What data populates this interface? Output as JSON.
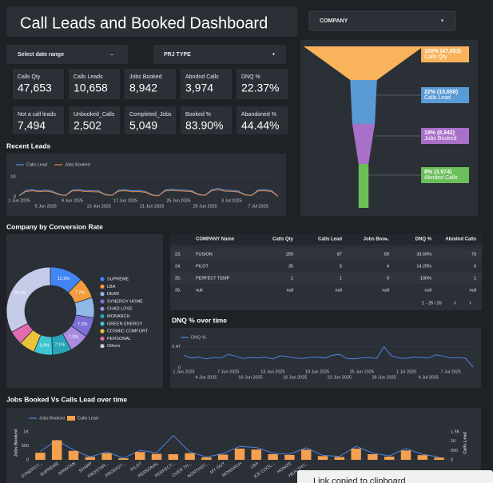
{
  "header": {
    "title": "Call Leads and Booked Dashboard",
    "company_filter": "COMPANY",
    "date_filter": "Select date range",
    "prj_filter": "PRJ TYPE"
  },
  "kpis": [
    {
      "label": "Calls Qty",
      "value": "47,653"
    },
    {
      "label": "Calls Leads",
      "value": "10,658"
    },
    {
      "label": "Jobs Booked",
      "value": "8,942"
    },
    {
      "label": "Abndnd Calls",
      "value": "3,974"
    },
    {
      "label": "DNQ %",
      "value": "22.37%"
    },
    {
      "label": "Not a call leads",
      "value": "7,494"
    },
    {
      "label": "Unbooked_Calls",
      "value": "2,502"
    },
    {
      "label": "Completed_Jobs",
      "value": "5,049"
    },
    {
      "label": "Booked %",
      "value": "83.90%"
    },
    {
      "label": "Abandoned %",
      "value": "44.44%"
    }
  ],
  "chart_data": [
    {
      "type": "funnel",
      "categories": [
        "Calls Qty",
        "Calls Lead",
        "Jobs Booked",
        "Abndnd Calls"
      ],
      "values": [
        47653,
        10658,
        8942,
        3974
      ],
      "value_labels": [
        "100% (47,653)",
        "22% (10,658)",
        "19% (8,942)",
        "8% (3,974)"
      ],
      "colors": [
        "#f9b35c",
        "#5b9bd5",
        "#a970c9",
        "#6bbf59"
      ]
    },
    {
      "type": "line",
      "title": "Recent Leads",
      "x": [
        "1 Jun 2025",
        null,
        null,
        null,
        "5 Jun 2025",
        null,
        null,
        null,
        "9 Jun 2025",
        null,
        null,
        null,
        "13 Jun 2025",
        null,
        null,
        null,
        "17 Jun 2025",
        null,
        null,
        null,
        "21 Jun 2025",
        null,
        null,
        null,
        "25 Jun 2025",
        null,
        null,
        null,
        "29 Jun 2025",
        null,
        null,
        null,
        "3 Jul 2025",
        null,
        null,
        null,
        "7 Jul 2025",
        null,
        null,
        null
      ],
      "series": [
        {
          "name": "Calls Lead",
          "color": "#5b8fd9",
          "values": [
            60,
            320,
            350,
            300,
            330,
            280,
            120,
            70,
            340,
            360,
            310,
            300,
            290,
            110,
            80,
            330,
            350,
            300,
            310,
            270,
            100,
            60,
            340,
            380,
            350,
            330,
            300,
            120,
            80,
            350,
            420,
            330,
            320,
            290,
            110,
            70,
            340,
            360,
            310,
            20
          ]
        },
        {
          "name": "Jobs Booked",
          "color": "#e08a4c",
          "values": [
            50,
            260,
            300,
            250,
            280,
            230,
            100,
            60,
            290,
            300,
            260,
            250,
            240,
            90,
            70,
            280,
            300,
            250,
            260,
            220,
            80,
            50,
            290,
            320,
            290,
            280,
            250,
            100,
            70,
            300,
            350,
            280,
            270,
            240,
            90,
            60,
            290,
            300,
            260,
            15
          ]
        }
      ],
      "ylim": [
        0,
        1200
      ],
      "yticks": [
        0,
        {
          "value": 1000,
          "label": "1K"
        }
      ],
      "legend": "top"
    },
    {
      "type": "pie",
      "donut": true,
      "title": "Company by Conversion Rate",
      "categories": [
        "SUPREME",
        "LBA",
        "DEAR",
        "SYNERGY HOME",
        "CHAD LOVE",
        "MONARCH",
        "GREEN ENERGY",
        "COSMIC COMFORT",
        "PERSONAL",
        "Others"
      ],
      "values": [
        12.3,
        7.7,
        7.5,
        7.3,
        7.3,
        7.1,
        6.9,
        5.8,
        5.2,
        32.9
      ],
      "value_labels": [
        "12.3%",
        "7.7%",
        null,
        "7.3%",
        "7.3%",
        "7.1%",
        "6.9%",
        null,
        null,
        "32.9%"
      ],
      "colors": [
        "#4285f4",
        "#f39c3d",
        "#8fb8e8",
        "#7d6fd6",
        "#a98be0",
        "#26a5b8",
        "#3ec6d4",
        "#e9c43b",
        "#e26ab0",
        "#c5cbe8"
      ],
      "legend": "right"
    },
    {
      "type": "line",
      "title": "DNQ % over time",
      "x": [
        "1 Jun 2025",
        null,
        null,
        "4 Jun 2025",
        null,
        null,
        "7 Jun 2025",
        null,
        null,
        "10 Jun 2025",
        null,
        null,
        "13 Jun 2025",
        null,
        null,
        "16 Jun 2025",
        null,
        null,
        "19 Jun 2025",
        null,
        null,
        "22 Jun 2025",
        null,
        null,
        "25 Jun 2025",
        null,
        null,
        "28 Jun 2025",
        null,
        null,
        "1 Jul 2025",
        null,
        null,
        "4 Jul 2025",
        null,
        null,
        "7 Jul 2025",
        null,
        null,
        null
      ],
      "series": [
        {
          "name": "DNQ %",
          "color": "#4f86e0",
          "values": [
            0.28,
            0.22,
            0.24,
            0.2,
            0.23,
            0.22,
            0.3,
            0.26,
            0.21,
            0.23,
            0.22,
            0.24,
            0.2,
            0.27,
            0.25,
            0.22,
            0.21,
            0.23,
            0.24,
            0.22,
            0.28,
            0.3,
            0.21,
            0.2,
            0.22,
            0.23,
            0.21,
            0.47,
            0.27,
            0.22,
            0.21,
            0.24,
            0.23,
            0.22,
            0.29,
            0.26,
            0.22,
            0.23,
            0.21,
            0.02
          ]
        }
      ],
      "ylim": [
        0,
        0.5
      ],
      "yticks": [
        0,
        0.47
      ],
      "legend": "top"
    },
    {
      "type": "combo",
      "title": "Jobs Booked Vs Calls Lead over time",
      "categories": [
        "SYNERGY...",
        "SUPREME",
        "SPANTAN",
        "SHARP",
        "PROSTAR...",
        "PRODIGY...",
        "PILOT",
        "PERSONAL",
        "PERFECT...",
        "OVER TH...",
        "NORTHST...",
        "MY GUY",
        "MONARCH",
        "LBA",
        "ICE COOL...",
        "HONIZE",
        "HEALTHY...",
        null,
        null,
        null,
        null,
        null,
        null,
        null,
        null
      ],
      "series": [
        {
          "name": "Jobs Booked",
          "type": "line",
          "color": "#4f86e0",
          "values": [
            300,
            700,
            350,
            100,
            280,
            60,
            340,
            250,
            870,
            280,
            100,
            220,
            480,
            440,
            240,
            200,
            430,
            160,
            120,
            480,
            240,
            140,
            400,
            200,
            100
          ]
        },
        {
          "name": "Calls Lead",
          "type": "bar",
          "axis": "y2",
          "color": "#f5a04e",
          "values": [
            380,
            1050,
            480,
            150,
            350,
            80,
            420,
            320,
            300,
            350,
            130,
            280,
            600,
            550,
            300,
            260,
            540,
            200,
            150,
            600,
            300,
            170,
            500,
            250,
            120
          ]
        }
      ],
      "ylabel": "Jobs Booked",
      "y2label": "Calls Lead",
      "ylim": [
        0,
        1200
      ],
      "yticks": [
        0,
        500,
        {
          "value": 1000,
          "label": "1K"
        }
      ],
      "y2lim": [
        0,
        1800
      ],
      "y2ticks": [
        0,
        500,
        {
          "value": 1000,
          "label": "1K"
        },
        {
          "value": 1500,
          "label": "1.5K"
        }
      ],
      "legend": "top"
    }
  ],
  "table": {
    "columns": [
      "COMPANY Name",
      "Calls Qty",
      "Calls Lead",
      "Jobs Boo...",
      "DNQ %",
      "Abndnd Calls"
    ],
    "rows": [
      [
        "23.",
        "FUSION",
        "259",
        "87",
        "59",
        "33.59%",
        "70"
      ],
      [
        "24.",
        "PILOT",
        "35",
        "5",
        "4",
        "14.29%",
        "0"
      ],
      [
        "25.",
        "PERFECT TEMP",
        "1",
        "1",
        "0",
        "100%",
        "1"
      ],
      [
        "26.",
        "null",
        "null",
        "null",
        "null",
        "null",
        "null"
      ]
    ],
    "pagination": "1 - 26 / 26"
  },
  "toast": "Link copied to clipboard"
}
